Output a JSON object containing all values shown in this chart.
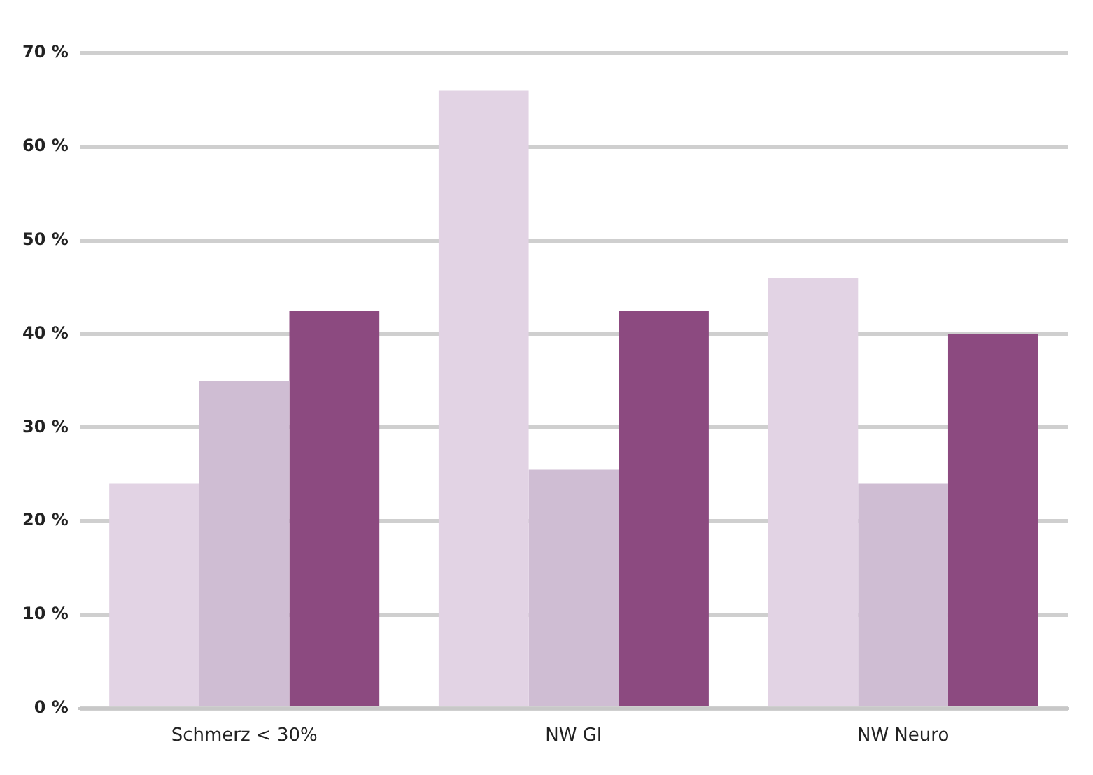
{
  "chart_data": {
    "type": "bar",
    "categories": [
      "Schmerz < 30%",
      "NW GI",
      "NW Neuro"
    ],
    "series": [
      {
        "color": "#e2d3e4",
        "values": [
          24,
          66,
          46
        ]
      },
      {
        "color": "#cfbdd3",
        "values": [
          35,
          25.5,
          24
        ]
      },
      {
        "color": "#8c4a80",
        "values": [
          42.5,
          42.5,
          40
        ]
      }
    ],
    "ylim": [
      0,
      70
    ],
    "yticks": [
      {
        "value": 0,
        "label": "0 %"
      },
      {
        "value": 10,
        "label": "10 %"
      },
      {
        "value": 20,
        "label": "20 %"
      },
      {
        "value": 30,
        "label": "30 %"
      },
      {
        "value": 40,
        "label": "40 %"
      },
      {
        "value": 50,
        "label": "50 %"
      },
      {
        "value": 60,
        "label": "60 %"
      },
      {
        "value": 70,
        "label": "70 %"
      }
    ],
    "grid": "y",
    "legend": false
  }
}
